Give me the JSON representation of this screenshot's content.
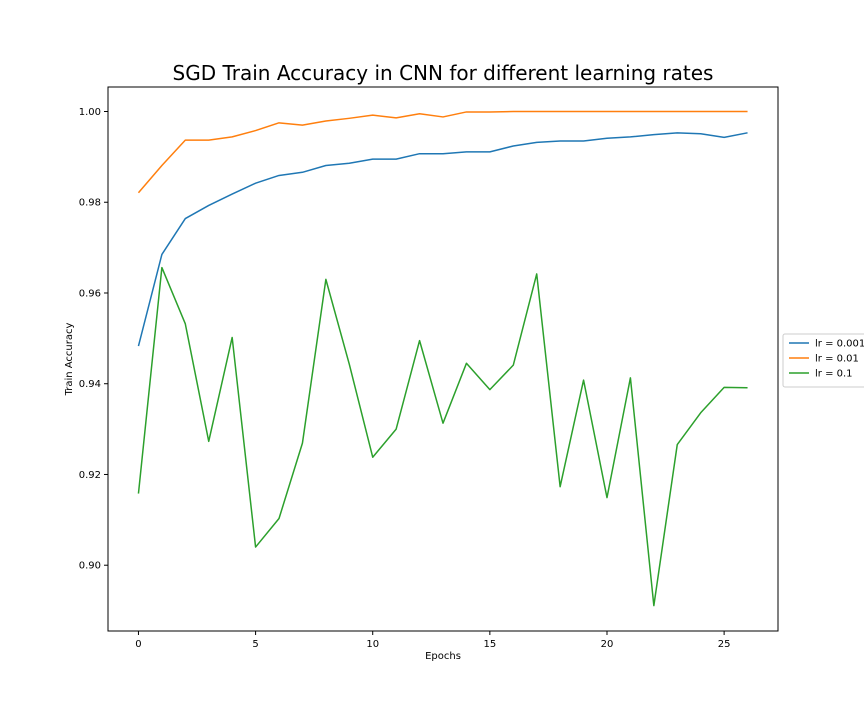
{
  "chart_data": {
    "type": "line",
    "title": "SGD Train Accuracy in CNN for different learning rates",
    "xlabel": "Epochs",
    "ylabel": "Train Accuracy",
    "xlim": [
      -1.3,
      27.3
    ],
    "ylim": [
      0.8855,
      1.0054
    ],
    "xticks": [
      0,
      5,
      10,
      15,
      20,
      25
    ],
    "yticks": [
      0.9,
      0.92,
      0.94,
      0.96,
      0.98,
      1.0
    ],
    "ytick_labels": [
      "0.90",
      "0.92",
      "0.94",
      "0.96",
      "0.98",
      "1.00"
    ],
    "grid": false,
    "legend_position": "outside-right",
    "x": [
      0,
      1,
      2,
      3,
      4,
      5,
      6,
      7,
      8,
      9,
      10,
      11,
      12,
      13,
      14,
      15,
      16,
      17,
      18,
      19,
      20,
      21,
      22,
      23,
      24,
      25,
      26
    ],
    "series": [
      {
        "name": "lr = 0.001",
        "color": "#1f77b4",
        "values": [
          0.9483,
          0.9685,
          0.9764,
          0.9793,
          0.9818,
          0.9842,
          0.9859,
          0.9866,
          0.9881,
          0.9886,
          0.9895,
          0.9895,
          0.9907,
          0.9907,
          0.9911,
          0.9911,
          0.9924,
          0.9932,
          0.9935,
          0.9935,
          0.9941,
          0.9944,
          0.9949,
          0.9953,
          0.9951,
          0.9943,
          0.9953
        ]
      },
      {
        "name": "lr = 0.01",
        "color": "#ff7f0e",
        "values": [
          0.9821,
          0.9881,
          0.9937,
          0.9937,
          0.9944,
          0.9958,
          0.9975,
          0.997,
          0.9979,
          0.9985,
          0.9992,
          0.9986,
          0.9995,
          0.9988,
          0.9999,
          0.9999,
          1.0,
          1.0,
          1.0,
          1.0,
          1.0,
          1.0,
          1.0,
          1.0,
          1.0,
          1.0,
          1.0
        ]
      },
      {
        "name": "lr = 0.1",
        "color": "#2ca02c",
        "values": [
          0.9158,
          0.9656,
          0.9532,
          0.9273,
          0.9502,
          0.904,
          0.9103,
          0.9269,
          0.963,
          0.9443,
          0.9238,
          0.93,
          0.9495,
          0.9313,
          0.9445,
          0.9387,
          0.9441,
          0.9642,
          0.9173,
          0.9408,
          0.9149,
          0.9413,
          0.8911,
          0.9266,
          0.9336,
          0.9392,
          0.9391
        ]
      }
    ]
  }
}
